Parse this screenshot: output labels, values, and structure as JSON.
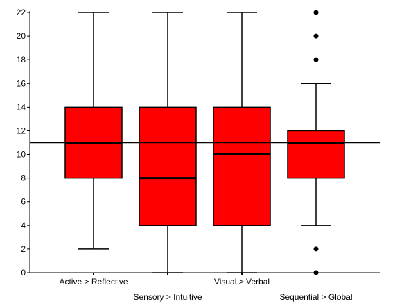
{
  "chart_data": {
    "type": "box",
    "title": "",
    "xlabel": "",
    "ylabel": "",
    "ylim": [
      0,
      22
    ],
    "yticks": [
      0,
      2,
      4,
      6,
      8,
      10,
      12,
      14,
      16,
      18,
      20,
      22
    ],
    "reference_line": 11,
    "grid": false,
    "legend": "none",
    "colors": {
      "box_fill": "#ff0000",
      "box_stroke": "#000000",
      "line": "#000000"
    },
    "categories": [
      "Active > Reflective",
      "Sensory > Intuitive",
      "Visual > Verbal",
      "Sequential > Global"
    ],
    "boxes": [
      {
        "category": "Active > Reflective",
        "whisker_low": 2,
        "q1": 8,
        "median": 11,
        "q3": 14,
        "whisker_high": 22,
        "outliers": []
      },
      {
        "category": "Sensory > Intuitive",
        "whisker_low": 0,
        "q1": 4,
        "median": 8,
        "q3": 14,
        "whisker_high": 22,
        "outliers": []
      },
      {
        "category": "Visual > Verbal",
        "whisker_low": 0,
        "q1": 4,
        "median": 10,
        "q3": 14,
        "whisker_high": 22,
        "outliers": []
      },
      {
        "category": "Sequential > Global",
        "whisker_low": 4,
        "q1": 8,
        "median": 11,
        "q3": 12,
        "whisker_high": 16,
        "outliers": [
          0,
          2,
          18,
          20,
          22
        ]
      }
    ]
  }
}
